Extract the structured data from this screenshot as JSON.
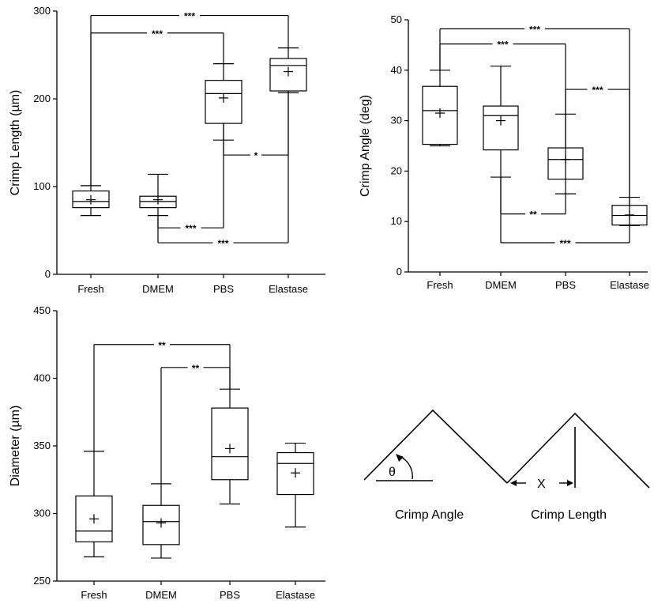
{
  "chart_data": [
    {
      "type": "box",
      "ylabel": "Crimp Length (µm)",
      "ylim": [
        0,
        300
      ],
      "yticks": [
        0,
        100,
        200,
        300
      ],
      "categories": [
        "Fresh",
        "DMEM",
        "PBS",
        "Elastase"
      ],
      "boxes": [
        {
          "min": 67,
          "q1": 76,
          "median": 83,
          "q3": 95,
          "max": 101,
          "mean": 85
        },
        {
          "min": 67,
          "q1": 76,
          "median": 83,
          "q3": 89,
          "max": 114,
          "mean": 85
        },
        {
          "min": 153,
          "q1": 172,
          "median": 206,
          "q3": 221,
          "max": 240,
          "mean": 201
        },
        {
          "min": 207,
          "q1": 209,
          "median": 238,
          "q3": 246,
          "max": 258,
          "mean": 231
        }
      ],
      "comparisons": [
        {
          "from": 0,
          "to": 3,
          "label": "***",
          "y": 295,
          "side": "top"
        },
        {
          "from": 0,
          "to": 2,
          "label": "***",
          "y": 275,
          "side": "top"
        },
        {
          "from": 2,
          "to": 3,
          "label": "*",
          "y": 136,
          "side": "mid"
        },
        {
          "from": 1,
          "to": 2,
          "label": "***",
          "y": 53,
          "side": "bottom"
        },
        {
          "from": 1,
          "to": 3,
          "label": "***",
          "y": 36,
          "side": "bottom"
        }
      ]
    },
    {
      "type": "box",
      "ylabel": "Crimp Angle (deg)",
      "ylim": [
        0,
        50
      ],
      "yticks": [
        0,
        10,
        20,
        30,
        40,
        50
      ],
      "categories": [
        "Fresh",
        "DMEM",
        "PBS",
        "Elastase"
      ],
      "boxes": [
        {
          "min": 25,
          "q1": 25.3,
          "median": 32,
          "q3": 36.8,
          "max": 40,
          "mean": 31.5
        },
        {
          "min": 18.8,
          "q1": 24.2,
          "median": 31,
          "q3": 32.9,
          "max": 40.8,
          "mean": 30
        },
        {
          "min": 15.5,
          "q1": 18.4,
          "median": 22.3,
          "q3": 24.6,
          "max": 31.3,
          "mean": 22.3
        },
        {
          "min": 9.2,
          "q1": 9.3,
          "median": 11.2,
          "q3": 13.2,
          "max": 14.8,
          "mean": 11.3
        }
      ],
      "comparisons": [
        {
          "from": 0,
          "to": 3,
          "label": "***",
          "y": 48.2,
          "side": "top"
        },
        {
          "from": 0,
          "to": 2,
          "label": "***",
          "y": 45.2,
          "side": "top"
        },
        {
          "from": 2,
          "to": 3,
          "label": "***",
          "y": 36.2,
          "side": "mid"
        },
        {
          "from": 1,
          "to": 2,
          "label": "**",
          "y": 11.5,
          "side": "bottom"
        },
        {
          "from": 1,
          "to": 3,
          "label": "***",
          "y": 5.8,
          "side": "bottom"
        }
      ]
    },
    {
      "type": "box",
      "ylabel": "Diameter (µm)",
      "ylim": [
        250,
        450
      ],
      "yticks": [
        250,
        300,
        350,
        400,
        450
      ],
      "categories": [
        "Fresh",
        "DMEM",
        "PBS",
        "Elastase"
      ],
      "boxes": [
        {
          "min": 268,
          "q1": 279,
          "median": 287,
          "q3": 313,
          "max": 346,
          "mean": 296
        },
        {
          "min": 267,
          "q1": 277,
          "median": 294,
          "q3": 306,
          "max": 322,
          "mean": 293
        },
        {
          "min": 307,
          "q1": 325,
          "median": 342,
          "q3": 378,
          "max": 392,
          "mean": 348
        },
        {
          "min": 290,
          "q1": 314,
          "median": 337,
          "q3": 345,
          "max": 352,
          "mean": 330
        }
      ],
      "comparisons": [
        {
          "from": 0,
          "to": 2,
          "label": "**",
          "y": 425,
          "side": "top"
        },
        {
          "from": 1,
          "to": 2,
          "label": "**",
          "y": 408,
          "side": "top"
        }
      ]
    }
  ],
  "diagram": {
    "theta": "θ",
    "x": "X",
    "crimp_angle": "Crimp Angle",
    "crimp_length": "Crimp Length"
  }
}
